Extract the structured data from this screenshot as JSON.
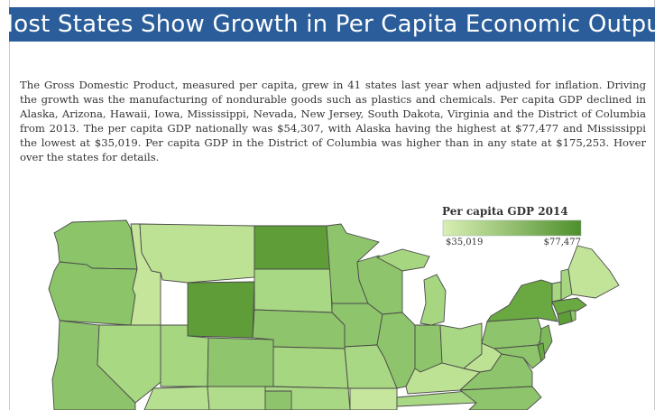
{
  "title": "Most States Show Growth in Per Capita Economic Output",
  "intro": "The Gross Domestic Product, measured per capita, grew in 41 states last year when adjusted for inflation. Driving the growth was the manufacturing of nondurable goods such as plastics and chemicals. Per capita GDP declined in Alaska, Arizona, Hawaii, Iowa, Mississippi, Nevada, New Jersey, South Dakota, Virginia and the District of Columbia from 2013. The per capita GDP nationally was $54,307, with Alaska having the highest at $77,477 and Mississippi the lowest at $35,019. Per capita GDP in the District of Columbia was higher than in any state at $175,253. Hover over the states for details.",
  "legend": {
    "title": "Per capita GDP 2014",
    "min_label": "$35,019",
    "max_label": "$77,477",
    "min_value": 35019,
    "max_value": 77477,
    "color_low": "#d9efb4",
    "color_high": "#4e8f2c"
  },
  "colors": {
    "title_bar": "#2a5d99",
    "state_border": "#4a4a4a"
  }
}
